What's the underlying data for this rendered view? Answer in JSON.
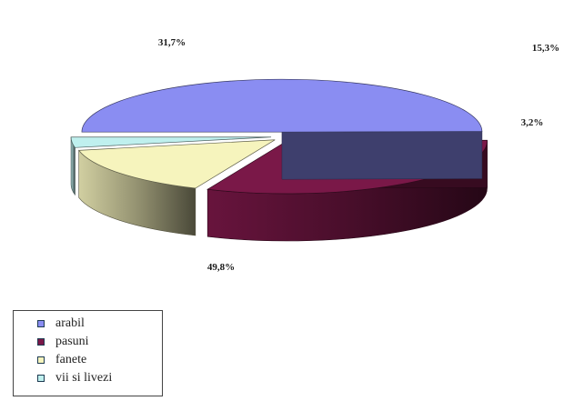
{
  "chart_data": {
    "type": "pie",
    "style": "3d-exploded",
    "slices": [
      {
        "label": "arabil",
        "value": 49.8,
        "value_label": "49,8%",
        "color": "#8a8df2"
      },
      {
        "label": "pasuni",
        "value": 31.7,
        "value_label": "31,7%",
        "color": "#7a1848"
      },
      {
        "label": "fanete",
        "value": 15.3,
        "value_label": "15,3%",
        "color": "#f6f4bd"
      },
      {
        "label": "vii si livezi",
        "value": 3.2,
        "value_label": "3,2%",
        "color": "#bff0ee"
      }
    ],
    "legend_position": "bottom-left"
  },
  "legend": {
    "items": [
      {
        "label": "arabil",
        "color": "#8a8df2"
      },
      {
        "label": "pasuni",
        "color": "#7a1848"
      },
      {
        "label": "fanete",
        "color": "#f6f4bd"
      },
      {
        "label": "vii si livezi",
        "color": "#bff0ee"
      }
    ]
  }
}
